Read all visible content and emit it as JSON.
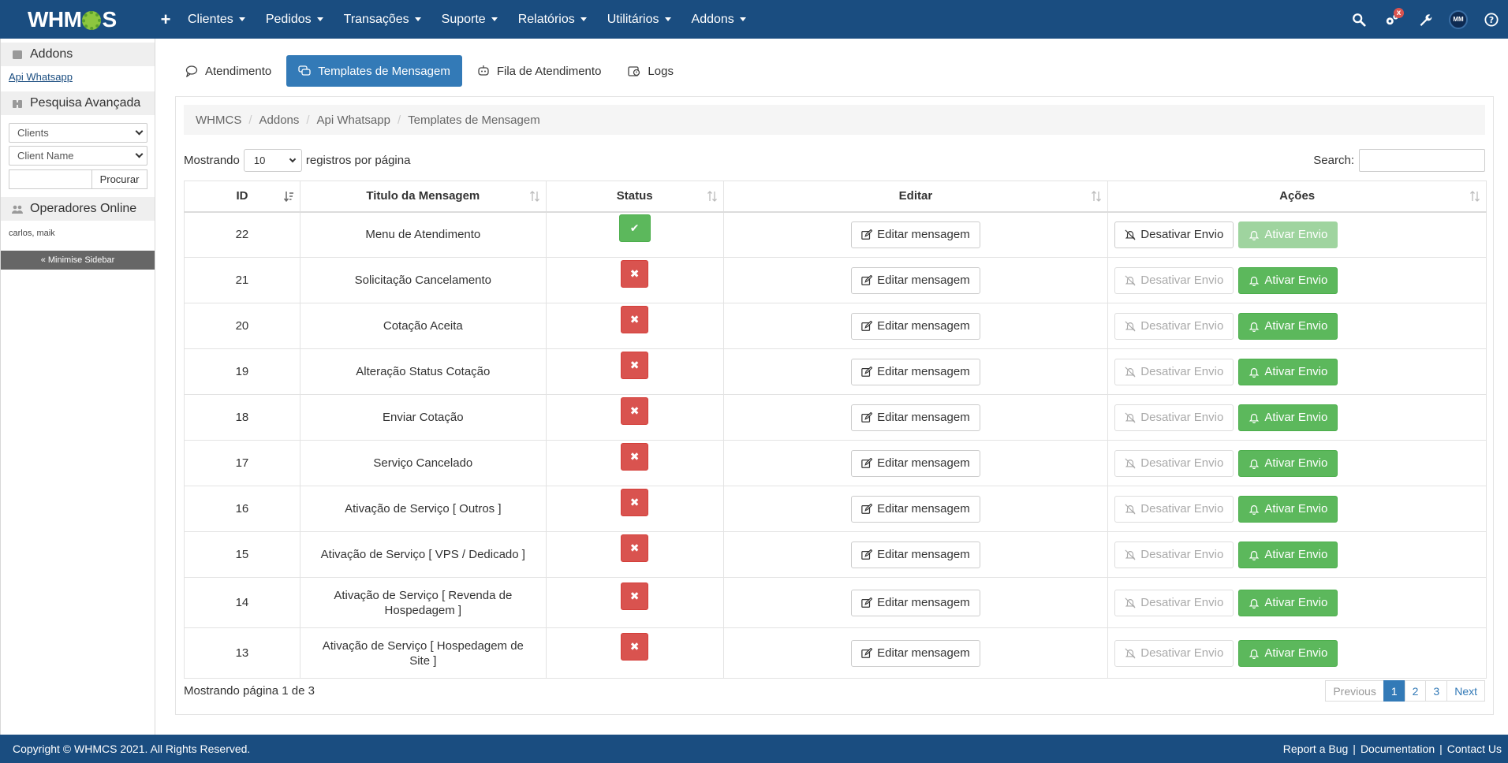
{
  "brand": {
    "logo_text_pre": "WHM",
    "logo_text_post": "S"
  },
  "nav": {
    "items": [
      {
        "label": "Clientes"
      },
      {
        "label": "Pedidos"
      },
      {
        "label": "Transações"
      },
      {
        "label": "Suporte"
      },
      {
        "label": "Relatórios"
      },
      {
        "label": "Utilitários"
      },
      {
        "label": "Addons"
      }
    ],
    "badge": "x",
    "avatar_initials": "MM",
    "icons": [
      "search-icon",
      "cogs-icon",
      "wrench-icon",
      "avatar",
      "help-icon"
    ]
  },
  "sidebar": {
    "addons_title": "Addons",
    "addons_link": "Api Whatsapp",
    "search_title": "Pesquisa Avançada",
    "select_type": "Clients",
    "select_field": "Client Name",
    "search_button": "Procurar",
    "online_title": "Operadores Online",
    "online_users": "carlos, maik",
    "minimise": "« Minimise Sidebar"
  },
  "tabs": [
    {
      "label": "Atendimento",
      "icon": "chat-icon",
      "active": false
    },
    {
      "label": "Templates de Mensagem",
      "icon": "templates-icon",
      "active": true
    },
    {
      "label": "Fila de Atendimento",
      "icon": "queue-icon",
      "active": false
    },
    {
      "label": "Logs",
      "icon": "logs-icon",
      "active": false
    }
  ],
  "breadcrumb": [
    "WHMCS",
    "Addons",
    "Api Whatsapp",
    "Templates de Mensagem"
  ],
  "table_controls": {
    "showing_prefix": "Mostrando",
    "page_length": "10",
    "showing_suffix": "registros por página",
    "search_label": "Search:"
  },
  "columns": [
    "ID",
    "Titulo da Mensagem",
    "Status",
    "Editar",
    "Ações"
  ],
  "rows": [
    {
      "id": "22",
      "title": "Menu de Atendimento",
      "status": "on",
      "edit": "Editar mensagem",
      "deactivate": "Desativar Envio",
      "activate": "Ativar Envio"
    },
    {
      "id": "21",
      "title": "Solicitação Cancelamento",
      "status": "off",
      "edit": "Editar mensagem",
      "deactivate": "Desativar Envio",
      "activate": "Ativar Envio"
    },
    {
      "id": "20",
      "title": "Cotação Aceita",
      "status": "off",
      "edit": "Editar mensagem",
      "deactivate": "Desativar Envio",
      "activate": "Ativar Envio"
    },
    {
      "id": "19",
      "title": "Alteração Status Cotação",
      "status": "off",
      "edit": "Editar mensagem",
      "deactivate": "Desativar Envio",
      "activate": "Ativar Envio"
    },
    {
      "id": "18",
      "title": "Enviar Cotação",
      "status": "off",
      "edit": "Editar mensagem",
      "deactivate": "Desativar Envio",
      "activate": "Ativar Envio"
    },
    {
      "id": "17",
      "title": "Serviço Cancelado",
      "status": "off",
      "edit": "Editar mensagem",
      "deactivate": "Desativar Envio",
      "activate": "Ativar Envio"
    },
    {
      "id": "16",
      "title": "Ativação de Serviço [ Outros ]",
      "status": "off",
      "edit": "Editar mensagem",
      "deactivate": "Desativar Envio",
      "activate": "Ativar Envio"
    },
    {
      "id": "15",
      "title": "Ativação de Serviço [ VPS / Dedicado ]",
      "status": "off",
      "edit": "Editar mensagem",
      "deactivate": "Desativar Envio",
      "activate": "Ativar Envio"
    },
    {
      "id": "14",
      "title": "Ativação de Serviço [ Revenda de Hospedagem ]",
      "status": "off",
      "edit": "Editar mensagem",
      "deactivate": "Desativar Envio",
      "activate": "Ativar Envio"
    },
    {
      "id": "13",
      "title": "Ativação de Serviço [ Hospedagem de Site ]",
      "status": "off",
      "edit": "Editar mensagem",
      "deactivate": "Desativar Envio",
      "activate": "Ativar Envio"
    }
  ],
  "status_symbols": {
    "on": "✔",
    "off": "✖"
  },
  "table_info": "Mostrando página 1 de 3",
  "pagination": {
    "previous": "Previous",
    "pages": [
      "1",
      "2",
      "3"
    ],
    "current": "1",
    "next": "Next"
  },
  "footer": {
    "copyright": "Copyright © WHMCS 2021. All Rights Reserved.",
    "links": [
      "Report a Bug",
      "Documentation",
      "Contact Us"
    ]
  },
  "colors": {
    "primary": "#1a4d80",
    "accent": "#337ab7",
    "success": "#5cb85c",
    "danger": "#d9534f"
  }
}
